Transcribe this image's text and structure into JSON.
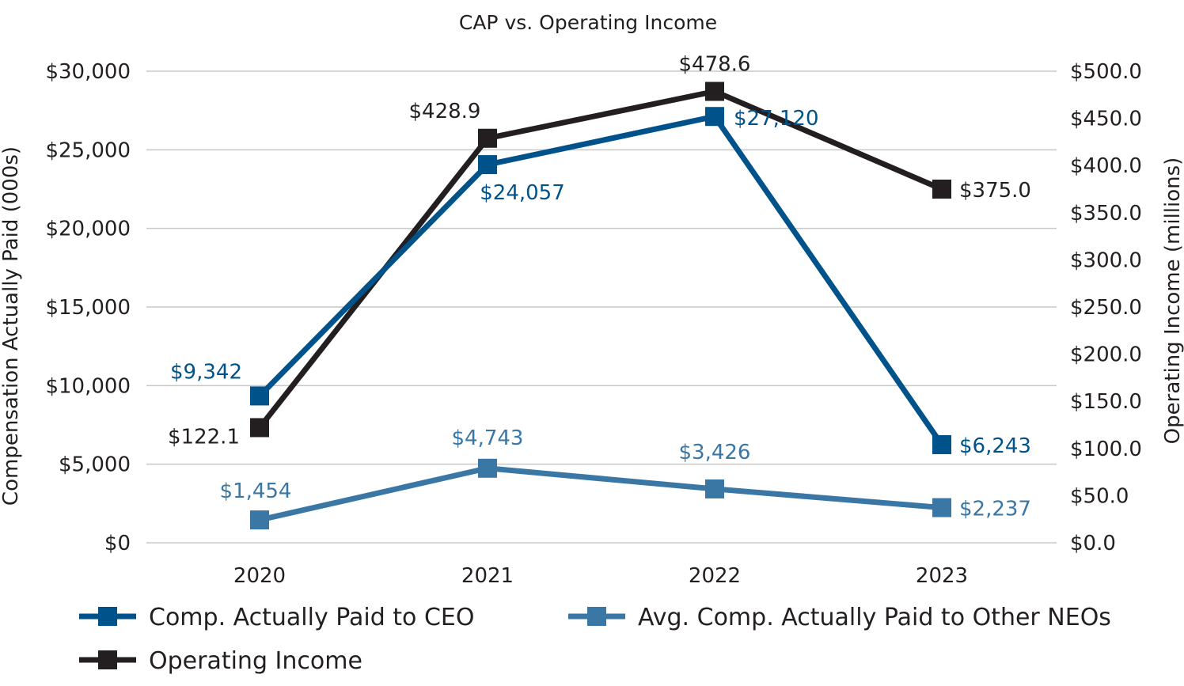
{
  "chart_data": {
    "type": "line",
    "title": "CAP vs. Operating Income",
    "categories": [
      "2020",
      "2021",
      "2022",
      "2023"
    ],
    "y_left": {
      "label": "Compensation Actually Paid (000s)",
      "range": [
        0,
        30000
      ],
      "ticks": [
        "$0",
        "$5,000",
        "$10,000",
        "$15,000",
        "$20,000",
        "$25,000",
        "$30,000"
      ]
    },
    "y_right": {
      "label": "Operating Income (millions)",
      "range": [
        0,
        500
      ],
      "ticks": [
        "$0.0",
        "$50.0",
        "$100.0",
        "$150.0",
        "$200.0",
        "$250.0",
        "$300.0",
        "$350.0",
        "$400.0",
        "$450.0",
        "$500.0"
      ]
    },
    "grid": true,
    "legend_position": "bottom",
    "series": [
      {
        "name": "Operating Income",
        "axis": "right",
        "color": "#231f20",
        "values": [
          122.1,
          428.9,
          478.6,
          375.0
        ],
        "labels": [
          "$122.1",
          "$428.9",
          "$478.6",
          "$375.0"
        ]
      },
      {
        "name": "Comp. Actually Paid to CEO",
        "axis": "left",
        "color": "#00538a",
        "values": [
          9342,
          24057,
          27120,
          6243
        ],
        "labels": [
          "$9,342",
          "$24,057",
          "$27,120",
          "$6,243"
        ]
      },
      {
        "name": "Avg. Comp. Actually Paid to Other NEOs",
        "axis": "left",
        "color": "#3a77a5",
        "values": [
          1454,
          4743,
          3426,
          2237
        ],
        "labels": [
          "$1,454",
          "$4,743",
          "$3,426",
          "$2,237"
        ]
      }
    ],
    "legend": [
      "Comp. Actually Paid to CEO",
      "Avg. Comp. Actually Paid to Other NEOs",
      "Operating Income"
    ]
  }
}
